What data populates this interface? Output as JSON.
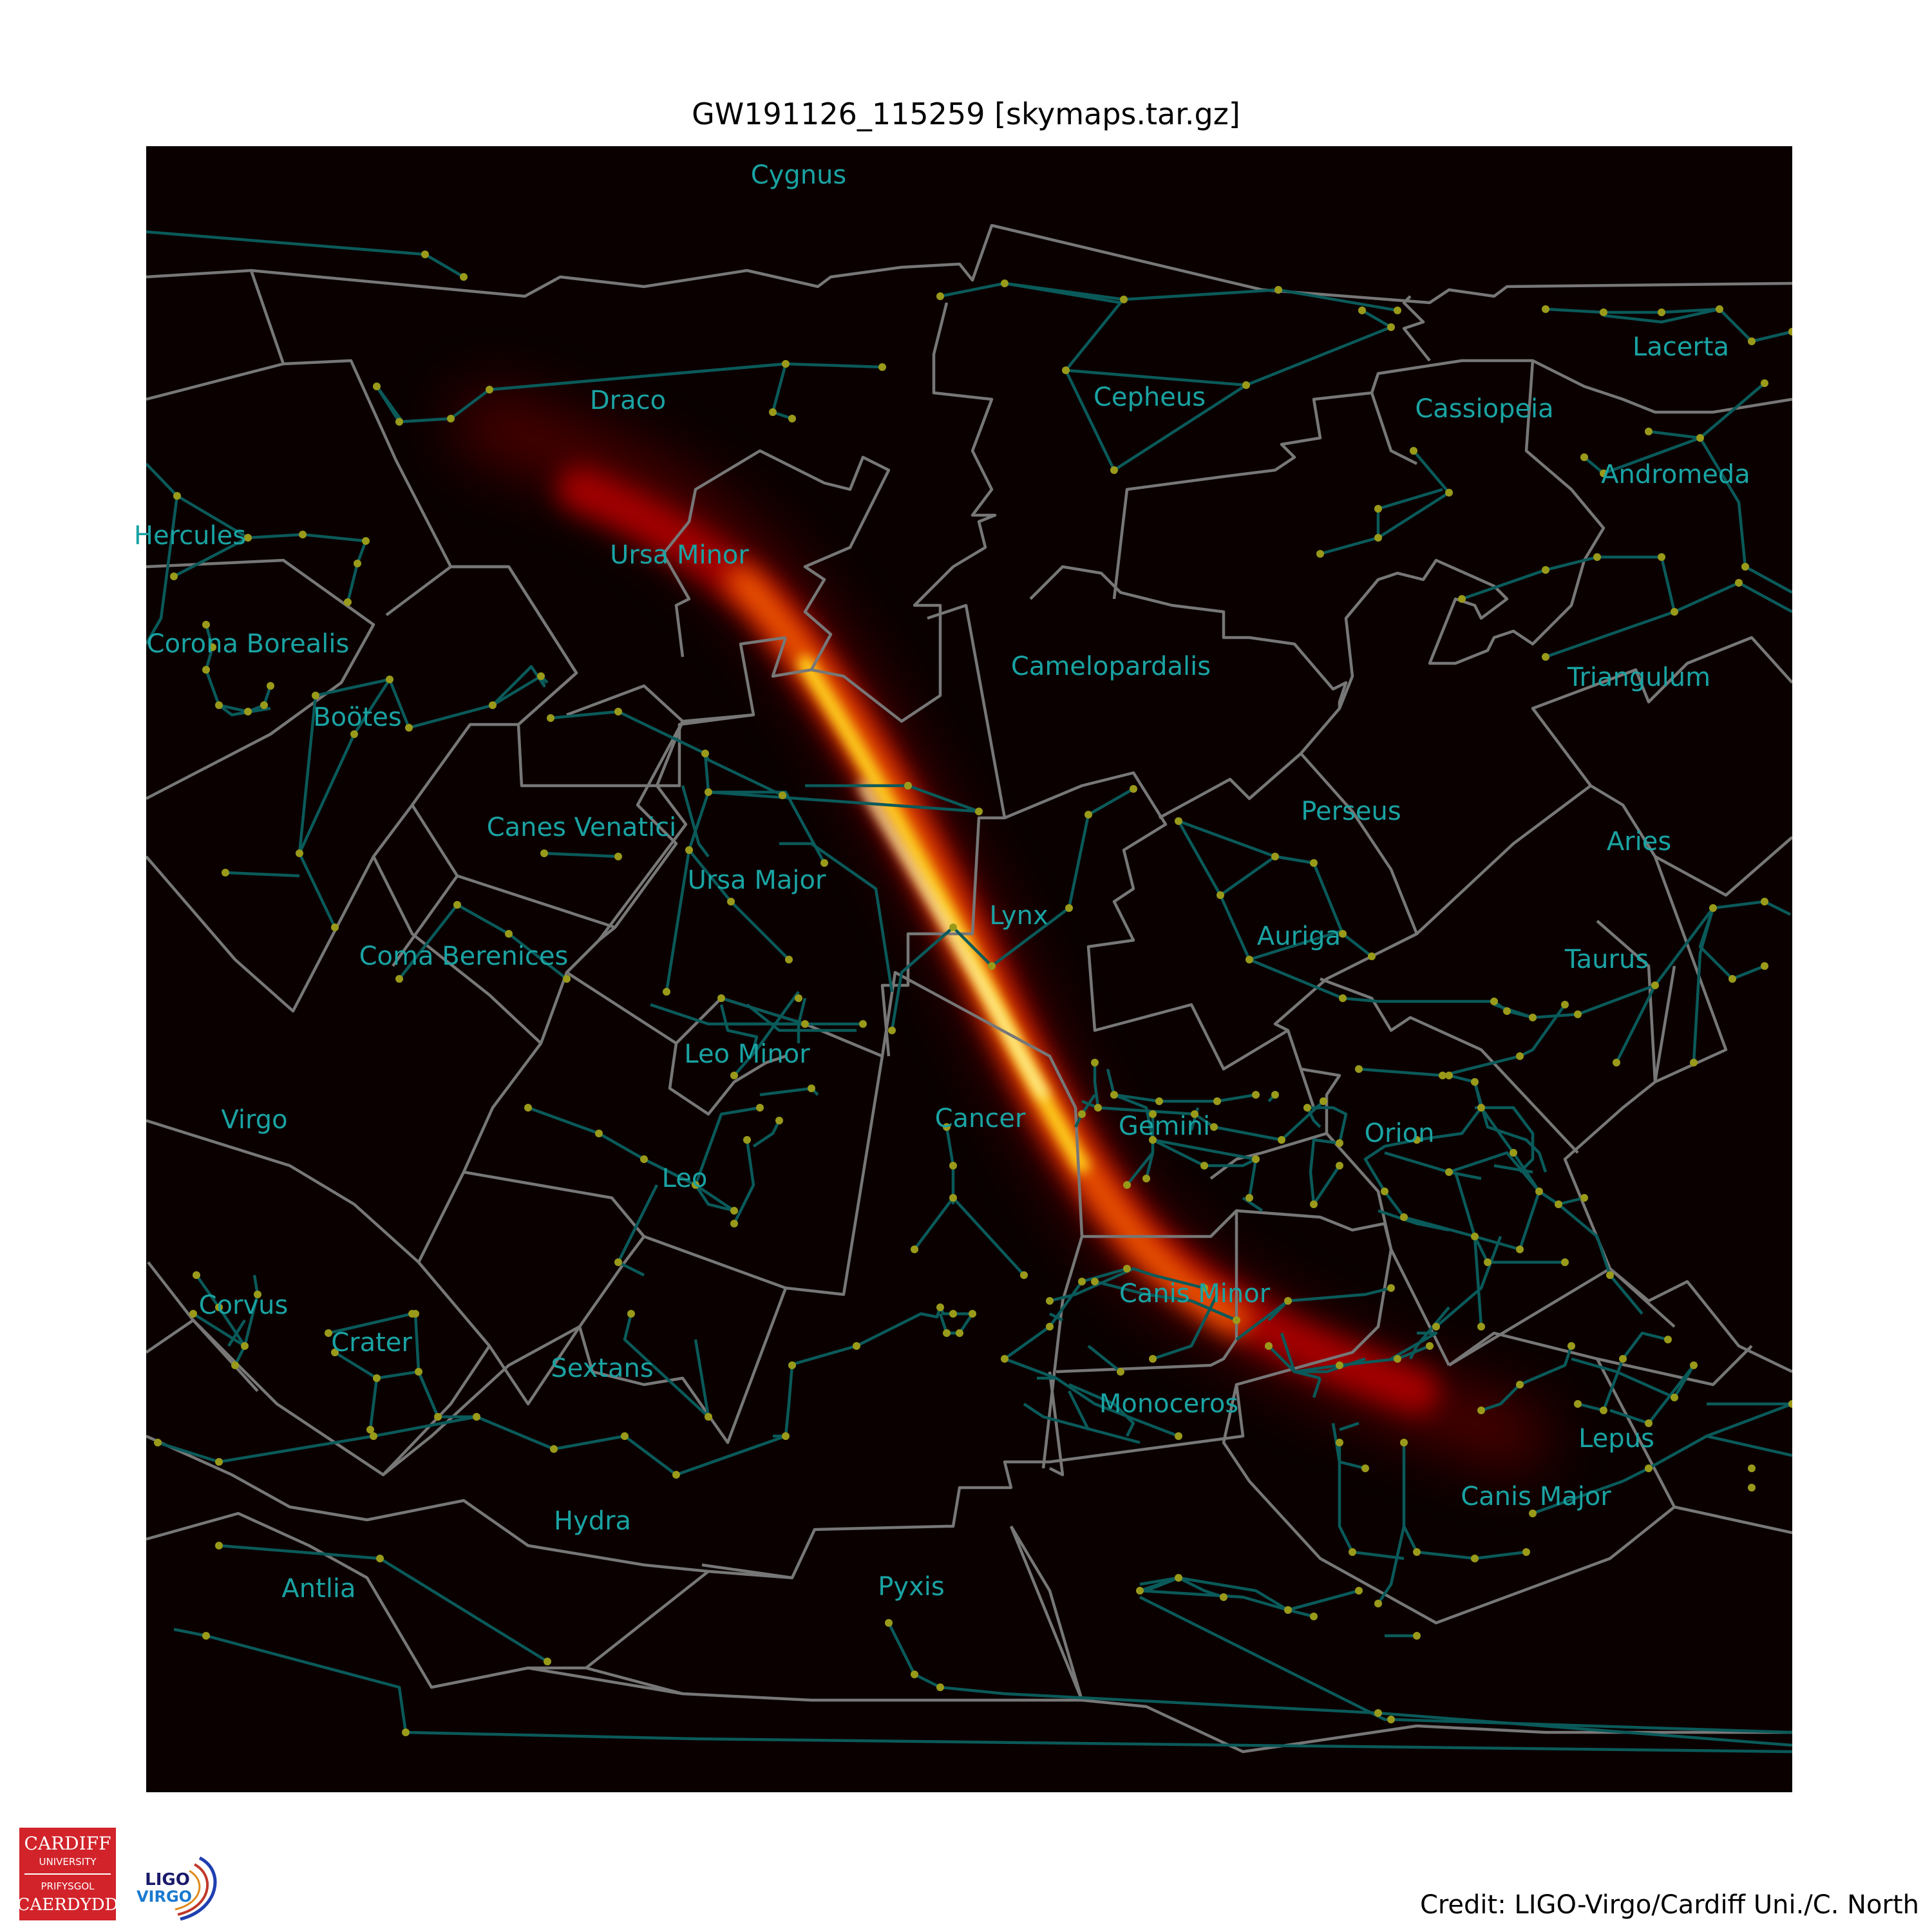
{
  "title": "GW191126_115259 [skymaps.tar.gz]",
  "credit": "Credit: LIGO-Virgo/Cardiff Uni./C. North",
  "logos": {
    "cardiff": [
      "CARDIFF",
      "UNIVERSITY",
      "PRIFYSGOL",
      "CAERDYDD"
    ],
    "ligo": [
      "LIGO",
      "VIRGO"
    ]
  },
  "colors": {
    "sky_background": "#0a0000",
    "constellation_lines": "#0a5a5a",
    "boundary_lines": "#777777",
    "star_dots": "#9a9a1a",
    "labels": "#1aa3a3",
    "probability_peak": "#ffffc0",
    "probability_mid": "#ff8c00",
    "probability_low": "#b00000"
  },
  "constellations": [
    "Cygnus",
    "Draco",
    "Cepheus",
    "Lacerta",
    "Cassiopeia",
    "Andromeda",
    "Hercules",
    "Ursa Minor",
    "Corona Borealis",
    "Boötes",
    "Camelopardalis",
    "Triangulum",
    "Perseus",
    "Aries",
    "Canes Venatici",
    "Ursa Major",
    "Lynx",
    "Auriga",
    "Coma Berenices",
    "Taurus",
    "Leo Minor",
    "Virgo",
    "Cancer",
    "Gemini",
    "Orion",
    "Leo",
    "Corvus",
    "Canis Minor",
    "Crater",
    "Sextans",
    "Monoceros",
    "Lepus",
    "Canis Major",
    "Hydra",
    "Antlia",
    "Pyxis"
  ]
}
